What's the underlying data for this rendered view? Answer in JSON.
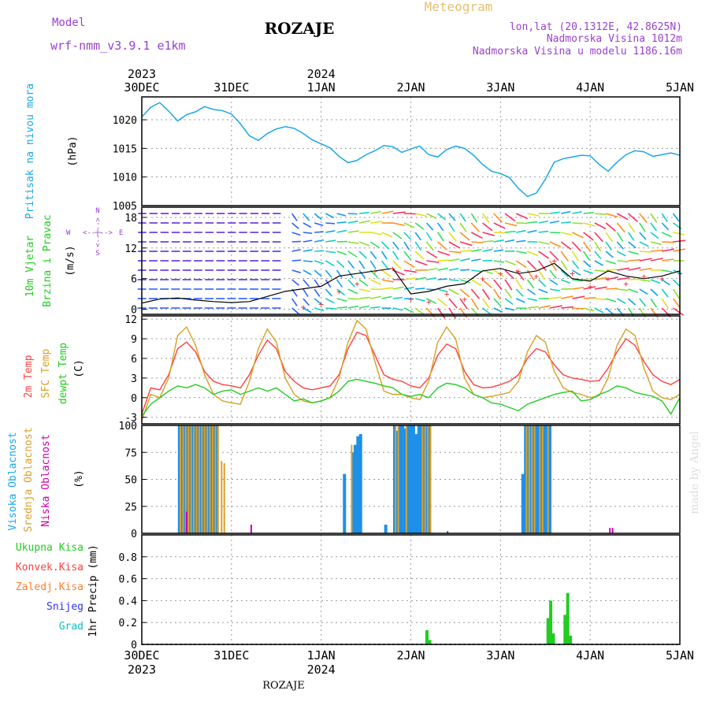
{
  "header": {
    "model_label": "Model",
    "model_name": "wrf-nmm_v3.9.1  e1km",
    "title": "ROZAJE",
    "meteogram": "Meteogram",
    "coords": "lon,lat (20.1312E, 42.8625N)",
    "elevation": "Nadmorska Visina 1012m",
    "model_elevation": "Nadmorska Visina u modelu 1186.16m"
  },
  "footer": {
    "station": "ROZAJE",
    "credit": "made by Angel"
  },
  "time_axis": {
    "top_years": [
      {
        "day": 0,
        "label": "2023"
      },
      {
        "day": 2,
        "label": "2024"
      }
    ],
    "ticks": [
      {
        "day": 0,
        "label": "30DEC"
      },
      {
        "day": 1,
        "label": "31DEC"
      },
      {
        "day": 2,
        "label": "1JAN"
      },
      {
        "day": 3,
        "label": "2JAN"
      },
      {
        "day": 4,
        "label": "3JAN"
      },
      {
        "day": 5,
        "label": "4JAN"
      },
      {
        "day": 6,
        "label": "5JAN"
      }
    ]
  },
  "colors": {
    "pressure": "#1aa7e8",
    "t2m": "#ff4040",
    "sfc": "#d9a020",
    "dew": "#22cc22",
    "high_cloud": "#1e90e8",
    "mid_cloud": "#d9a030",
    "low_cloud": "#cc00aa",
    "precip_total": "#22cc22",
    "convective": "#ff4040",
    "freezing": "#ff8030",
    "snow": "#3030ff",
    "hail": "#10c0c0",
    "purple_text": "#9a40d0",
    "meteo_text": "#e8c070"
  },
  "panels": {
    "pressure": {
      "ylabel": "Pritisak na nivou mora",
      "unit": "(hPa)",
      "ticks": [
        "1005",
        "1010",
        "1015",
        "1020"
      ]
    },
    "wind": {
      "ylabel1": "10m Vjetar",
      "ylabel2": "Brzina i Pravac",
      "unit": "(m/s)",
      "ticks": [
        "0",
        "6",
        "12",
        "18"
      ],
      "compass_w": "W",
      "compass_e": "E",
      "compass_lines": "<--|-->",
      "compass_s": "S",
      "compass_n": "N"
    },
    "temp": {
      "label_2m": "2m Temp",
      "label_sfc": "SFC Temp",
      "label_dew": "dewpt Temp",
      "unit": "(C)",
      "ticks": [
        "-3",
        "0",
        "3",
        "6",
        "9",
        "12"
      ]
    },
    "cloud": {
      "label_high": "Visoka Oblacnost",
      "label_mid": "Srednja Oblacnost",
      "label_low": "Niska Oblacnost",
      "unit": "(%)",
      "ticks": [
        "0",
        "25",
        "50",
        "75",
        "100"
      ]
    },
    "precip": {
      "unit": "1hr Precip (mm)",
      "ticks": [
        "0",
        "0.2",
        "0.4",
        "0.6",
        "0.8"
      ],
      "legend": [
        "Ukupna Kisa",
        "Konvek.Kisa",
        "Zaledj.Kisa",
        "Snijeg",
        "Grad"
      ]
    }
  },
  "chart_data": [
    {
      "type": "line",
      "name": "pressure",
      "ylim": [
        1005,
        1024
      ],
      "x": [
        0,
        0.1,
        0.2,
        0.3,
        0.4,
        0.5,
        0.6,
        0.7,
        0.8,
        0.9,
        1.0,
        1.1,
        1.2,
        1.3,
        1.4,
        1.5,
        1.6,
        1.7,
        1.8,
        1.9,
        2.0,
        2.1,
        2.2,
        2.3,
        2.4,
        2.5,
        2.6,
        2.7,
        2.8,
        2.9,
        3.0,
        3.1,
        3.2,
        3.3,
        3.4,
        3.5,
        3.6,
        3.7,
        3.8,
        3.9,
        4.0,
        4.1,
        4.2,
        4.3,
        4.4,
        4.5,
        4.6,
        4.7,
        4.8,
        4.9,
        5.0,
        5.1,
        5.2,
        5.3,
        5.4,
        5.5,
        5.6,
        5.7,
        5.8,
        5.9,
        6.0
      ],
      "series": [
        {
          "values": [
            1020.5,
            1022.2,
            1023.0,
            1021.5,
            1019.8,
            1020.9,
            1021.4,
            1022.3,
            1021.8,
            1021.6,
            1021.0,
            1019.3,
            1017.2,
            1016.4,
            1017.6,
            1018.4,
            1018.8,
            1018.5,
            1017.6,
            1016.5,
            1015.8,
            1015.1,
            1013.6,
            1012.5,
            1012.9,
            1013.9,
            1014.6,
            1015.5,
            1015.3,
            1014.3,
            1014.9,
            1015.4,
            1013.9,
            1013.5,
            1014.8,
            1015.4,
            1015.0,
            1013.8,
            1012.2,
            1011.0,
            1010.6,
            1009.9,
            1008.0,
            1006.6,
            1007.2,
            1009.6,
            1012.6,
            1013.2,
            1013.5,
            1013.8,
            1013.7,
            1012.2,
            1011.0,
            1012.6,
            1013.9,
            1014.6,
            1014.4,
            1013.6,
            1013.9,
            1014.2,
            1013.8
          ]
        }
      ]
    },
    {
      "type": "line",
      "name": "wind",
      "ylim": [
        -1,
        20
      ],
      "x": [
        0,
        0.2,
        0.4,
        0.6,
        0.8,
        1.0,
        1.2,
        1.4,
        1.6,
        1.8,
        2.0,
        2.2,
        2.4,
        2.6,
        2.8,
        3.0,
        3.2,
        3.4,
        3.6,
        3.8,
        4.0,
        4.2,
        4.4,
        4.6,
        4.8,
        5.0,
        5.2,
        5.4,
        5.6,
        5.8,
        6.0
      ],
      "series": [
        {
          "name": "speed",
          "values": [
            1.2,
            2.0,
            2.2,
            1.8,
            1.5,
            1.3,
            1.5,
            2.5,
            3.5,
            4.0,
            4.5,
            6.5,
            7.0,
            7.5,
            8.0,
            3.0,
            3.5,
            4.5,
            5.0,
            7.5,
            8.0,
            7.0,
            7.5,
            9.0,
            6.0,
            5.5,
            7.5,
            6.5,
            6.0,
            6.5,
            7.5
          ]
        },
        {
          "name": "gust",
          "values": [
            0,
            0,
            0,
            0,
            0,
            0,
            0,
            0,
            0,
            0.5,
            1.0,
            3.5,
            5.0,
            7.5,
            8.0,
            2.0,
            1.5,
            3.0,
            2.0,
            6.0,
            7.0,
            7.5,
            6.5,
            9.5,
            7.0,
            4.5,
            6.0,
            5.0,
            6.5,
            6.0,
            7.0
          ]
        }
      ]
    },
    {
      "type": "line",
      "name": "temperature",
      "ylim": [
        -4,
        12.5
      ],
      "x": [
        0,
        0.1,
        0.2,
        0.3,
        0.4,
        0.5,
        0.6,
        0.7,
        0.8,
        0.9,
        1.0,
        1.1,
        1.2,
        1.3,
        1.4,
        1.5,
        1.6,
        1.7,
        1.8,
        1.9,
        2.0,
        2.1,
        2.2,
        2.3,
        2.4,
        2.5,
        2.6,
        2.7,
        2.8,
        2.9,
        3.0,
        3.1,
        3.2,
        3.3,
        3.4,
        3.5,
        3.6,
        3.7,
        3.8,
        3.9,
        4.0,
        4.1,
        4.2,
        4.3,
        4.4,
        4.5,
        4.6,
        4.7,
        4.8,
        4.9,
        5.0,
        5.1,
        5.2,
        5.3,
        5.4,
        5.5,
        5.6,
        5.7,
        5.8,
        5.9,
        6.0
      ],
      "series": [
        {
          "name": "t2m",
          "values": [
            -2.5,
            1.5,
            1.2,
            3.5,
            7.5,
            8.5,
            7.0,
            4.0,
            2.5,
            2.0,
            1.8,
            1.5,
            3.5,
            6.5,
            8.8,
            7.5,
            4.0,
            2.5,
            1.5,
            1.2,
            1.5,
            1.8,
            3.5,
            7.5,
            10.0,
            9.5,
            6.5,
            3.5,
            2.8,
            2.5,
            1.8,
            1.5,
            3.0,
            6.5,
            8.2,
            7.5,
            4.0,
            2.0,
            1.5,
            1.6,
            2.0,
            2.5,
            3.5,
            6.0,
            7.5,
            7.0,
            5.0,
            3.5,
            3.0,
            2.8,
            2.5,
            2.6,
            4.5,
            7.0,
            9.0,
            8.0,
            5.5,
            3.5,
            2.5,
            2.0,
            2.8
          ]
        },
        {
          "name": "sfc",
          "values": [
            -3.5,
            0.5,
            0.0,
            3.0,
            9.5,
            10.8,
            8.0,
            3.5,
            0.5,
            -0.5,
            -0.8,
            -1.0,
            2.5,
            7.5,
            10.5,
            8.5,
            3.0,
            0.5,
            -0.5,
            -0.8,
            -0.5,
            0.0,
            3.0,
            8.5,
            11.8,
            10.5,
            5.5,
            1.0,
            0.5,
            0.5,
            0.0,
            -0.3,
            2.5,
            8.5,
            10.8,
            9.0,
            3.0,
            0.5,
            0.0,
            0.2,
            0.5,
            0.8,
            2.5,
            7.0,
            9.5,
            8.5,
            4.0,
            1.5,
            0.8,
            0.5,
            0.0,
            0.3,
            3.0,
            8.0,
            10.5,
            9.5,
            4.5,
            1.0,
            0.0,
            -0.3,
            0.5
          ]
        },
        {
          "name": "dew",
          "values": [
            -2.8,
            -1.0,
            0.0,
            1.0,
            1.8,
            1.5,
            2.0,
            1.5,
            0.5,
            1.0,
            1.2,
            0.5,
            1.0,
            1.5,
            1.0,
            1.5,
            0.5,
            -0.5,
            -0.2,
            -0.8,
            -0.5,
            0.0,
            1.0,
            2.5,
            2.8,
            2.5,
            2.2,
            1.8,
            1.5,
            0.5,
            0.2,
            0.5,
            0.0,
            1.5,
            2.2,
            2.0,
            1.5,
            0.5,
            0.0,
            -0.8,
            -1.0,
            -1.5,
            -2.0,
            -1.0,
            -0.5,
            0.0,
            0.5,
            0.8,
            1.0,
            -0.5,
            -0.3,
            0.5,
            1.0,
            1.8,
            1.5,
            0.8,
            0.5,
            0.2,
            -0.5,
            -2.5,
            0.0
          ]
        }
      ]
    },
    {
      "type": "bar",
      "name": "cloud_cover",
      "ylim": [
        0,
        100
      ],
      "series": [
        {
          "name": "high",
          "points": [
            [
              0.42,
              100
            ],
            [
              0.45,
              100
            ],
            [
              0.48,
              100
            ],
            [
              0.51,
              100
            ],
            [
              0.54,
              100
            ],
            [
              0.57,
              100
            ],
            [
              0.6,
              100
            ],
            [
              0.63,
              100
            ],
            [
              0.66,
              100
            ],
            [
              0.69,
              100
            ],
            [
              0.72,
              100
            ],
            [
              0.75,
              100
            ],
            [
              0.78,
              100
            ],
            [
              0.81,
              100
            ],
            [
              0.84,
              100
            ],
            [
              2.26,
              55
            ],
            [
              2.35,
              75
            ],
            [
              2.38,
              82
            ],
            [
              2.41,
              90
            ],
            [
              2.44,
              92
            ],
            [
              2.72,
              8
            ],
            [
              2.82,
              100
            ],
            [
              2.85,
              95
            ],
            [
              2.88,
              100
            ],
            [
              2.91,
              100
            ],
            [
              2.94,
              97
            ],
            [
              2.97,
              100
            ],
            [
              3.0,
              100
            ],
            [
              3.03,
              100
            ],
            [
              3.06,
              92
            ],
            [
              3.09,
              100
            ],
            [
              3.12,
              100
            ],
            [
              3.15,
              100
            ],
            [
              3.18,
              100
            ],
            [
              3.21,
              100
            ],
            [
              4.25,
              55
            ],
            [
              4.28,
              100
            ],
            [
              4.31,
              100
            ],
            [
              4.34,
              100
            ],
            [
              4.37,
              100
            ],
            [
              4.4,
              100
            ],
            [
              4.43,
              100
            ],
            [
              4.46,
              100
            ],
            [
              4.49,
              100
            ],
            [
              4.52,
              100
            ],
            [
              4.55,
              100
            ]
          ]
        },
        {
          "name": "mid",
          "points": [
            [
              0.43,
              100
            ],
            [
              0.46,
              100
            ],
            [
              0.49,
              100
            ],
            [
              0.52,
              100
            ],
            [
              0.55,
              100
            ],
            [
              0.58,
              100
            ],
            [
              0.61,
              100
            ],
            [
              0.64,
              100
            ],
            [
              0.67,
              100
            ],
            [
              0.7,
              100
            ],
            [
              0.73,
              100
            ],
            [
              0.76,
              100
            ],
            [
              0.79,
              100
            ],
            [
              0.82,
              100
            ],
            [
              0.85,
              100
            ],
            [
              0.89,
              67
            ],
            [
              0.92,
              65
            ],
            [
              2.34,
              82
            ],
            [
              2.83,
              100
            ],
            [
              2.86,
              100
            ],
            [
              2.95,
              100
            ],
            [
              3.13,
              100
            ],
            [
              3.16,
              100
            ],
            [
              3.19,
              100
            ],
            [
              3.22,
              100
            ],
            [
              4.29,
              100
            ],
            [
              4.32,
              100
            ],
            [
              4.35,
              100
            ],
            [
              4.38,
              100
            ],
            [
              4.44,
              100
            ],
            [
              4.47,
              100
            ],
            [
              4.53,
              100
            ]
          ]
        },
        {
          "name": "low",
          "points": [
            [
              0.5,
              20
            ],
            [
              1.22,
              8
            ],
            [
              3.41,
              2
            ],
            [
              5.22,
              5
            ],
            [
              5.25,
              5
            ]
          ]
        }
      ]
    },
    {
      "type": "bar",
      "name": "precipitation",
      "ylim": [
        0,
        1.0
      ],
      "series": [
        {
          "name": "total",
          "points": [
            [
              3.18,
              0.13
            ],
            [
              3.21,
              0.04
            ],
            [
              4.53,
              0.24
            ],
            [
              4.56,
              0.4
            ],
            [
              4.59,
              0.1
            ],
            [
              4.72,
              0.27
            ],
            [
              4.75,
              0.47
            ],
            [
              4.78,
              0.08
            ]
          ]
        }
      ]
    }
  ]
}
